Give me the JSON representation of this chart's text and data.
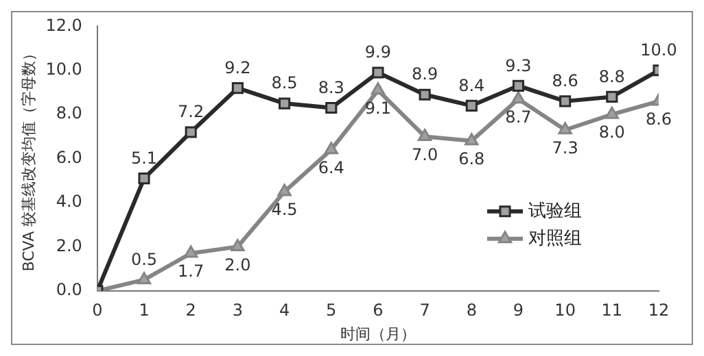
{
  "chart_data": {
    "type": "line",
    "xlabel": "时间（月）",
    "ylabel": "BCVA 较基线改变均值（字母数）",
    "x": [
      0,
      1,
      2,
      3,
      4,
      5,
      6,
      7,
      8,
      9,
      10,
      11,
      12
    ],
    "series": [
      {
        "name": "试验组",
        "color": "#2a2a2a",
        "marker": "square",
        "values": [
          0,
          5.1,
          7.2,
          9.2,
          8.5,
          8.3,
          9.9,
          8.9,
          8.4,
          9.3,
          8.6,
          8.8,
          10.0
        ],
        "value_labels": [
          null,
          "5.1",
          "7.2",
          "9.2",
          "8.5",
          "8.3",
          "9.9",
          "8.9",
          "8.4",
          "9.3",
          "8.6",
          "8.8",
          "10.0"
        ]
      },
      {
        "name": "对照组",
        "color": "#858585",
        "marker": "triangle",
        "values": [
          0,
          0.5,
          1.7,
          2.0,
          4.5,
          6.4,
          9.1,
          7.0,
          6.8,
          8.7,
          7.3,
          8.0,
          8.6
        ],
        "value_labels": [
          null,
          "0.5",
          "1.7",
          "2.0",
          "4.5",
          "6.4",
          "9.1",
          "7.0",
          "6.8",
          "8.7",
          "7.3",
          "8.0",
          "8.6"
        ]
      }
    ],
    "xlim": [
      0,
      12
    ],
    "xticks": [
      0,
      1,
      2,
      3,
      4,
      5,
      6,
      7,
      8,
      9,
      10,
      11,
      12
    ],
    "ylim": [
      0,
      12
    ],
    "yticks": [
      {
        "value": 0,
        "label": "0.0"
      },
      {
        "value": 2,
        "label": "2.0"
      },
      {
        "value": 4,
        "label": "4.0"
      },
      {
        "value": 6,
        "label": "6.0"
      },
      {
        "value": 8,
        "label": "8.0"
      },
      {
        "value": 10,
        "label": "10.0"
      },
      {
        "value": 12,
        "label": "12.0"
      }
    ],
    "grid": false,
    "legend": "bottom right",
    "line_style": "solid"
  }
}
